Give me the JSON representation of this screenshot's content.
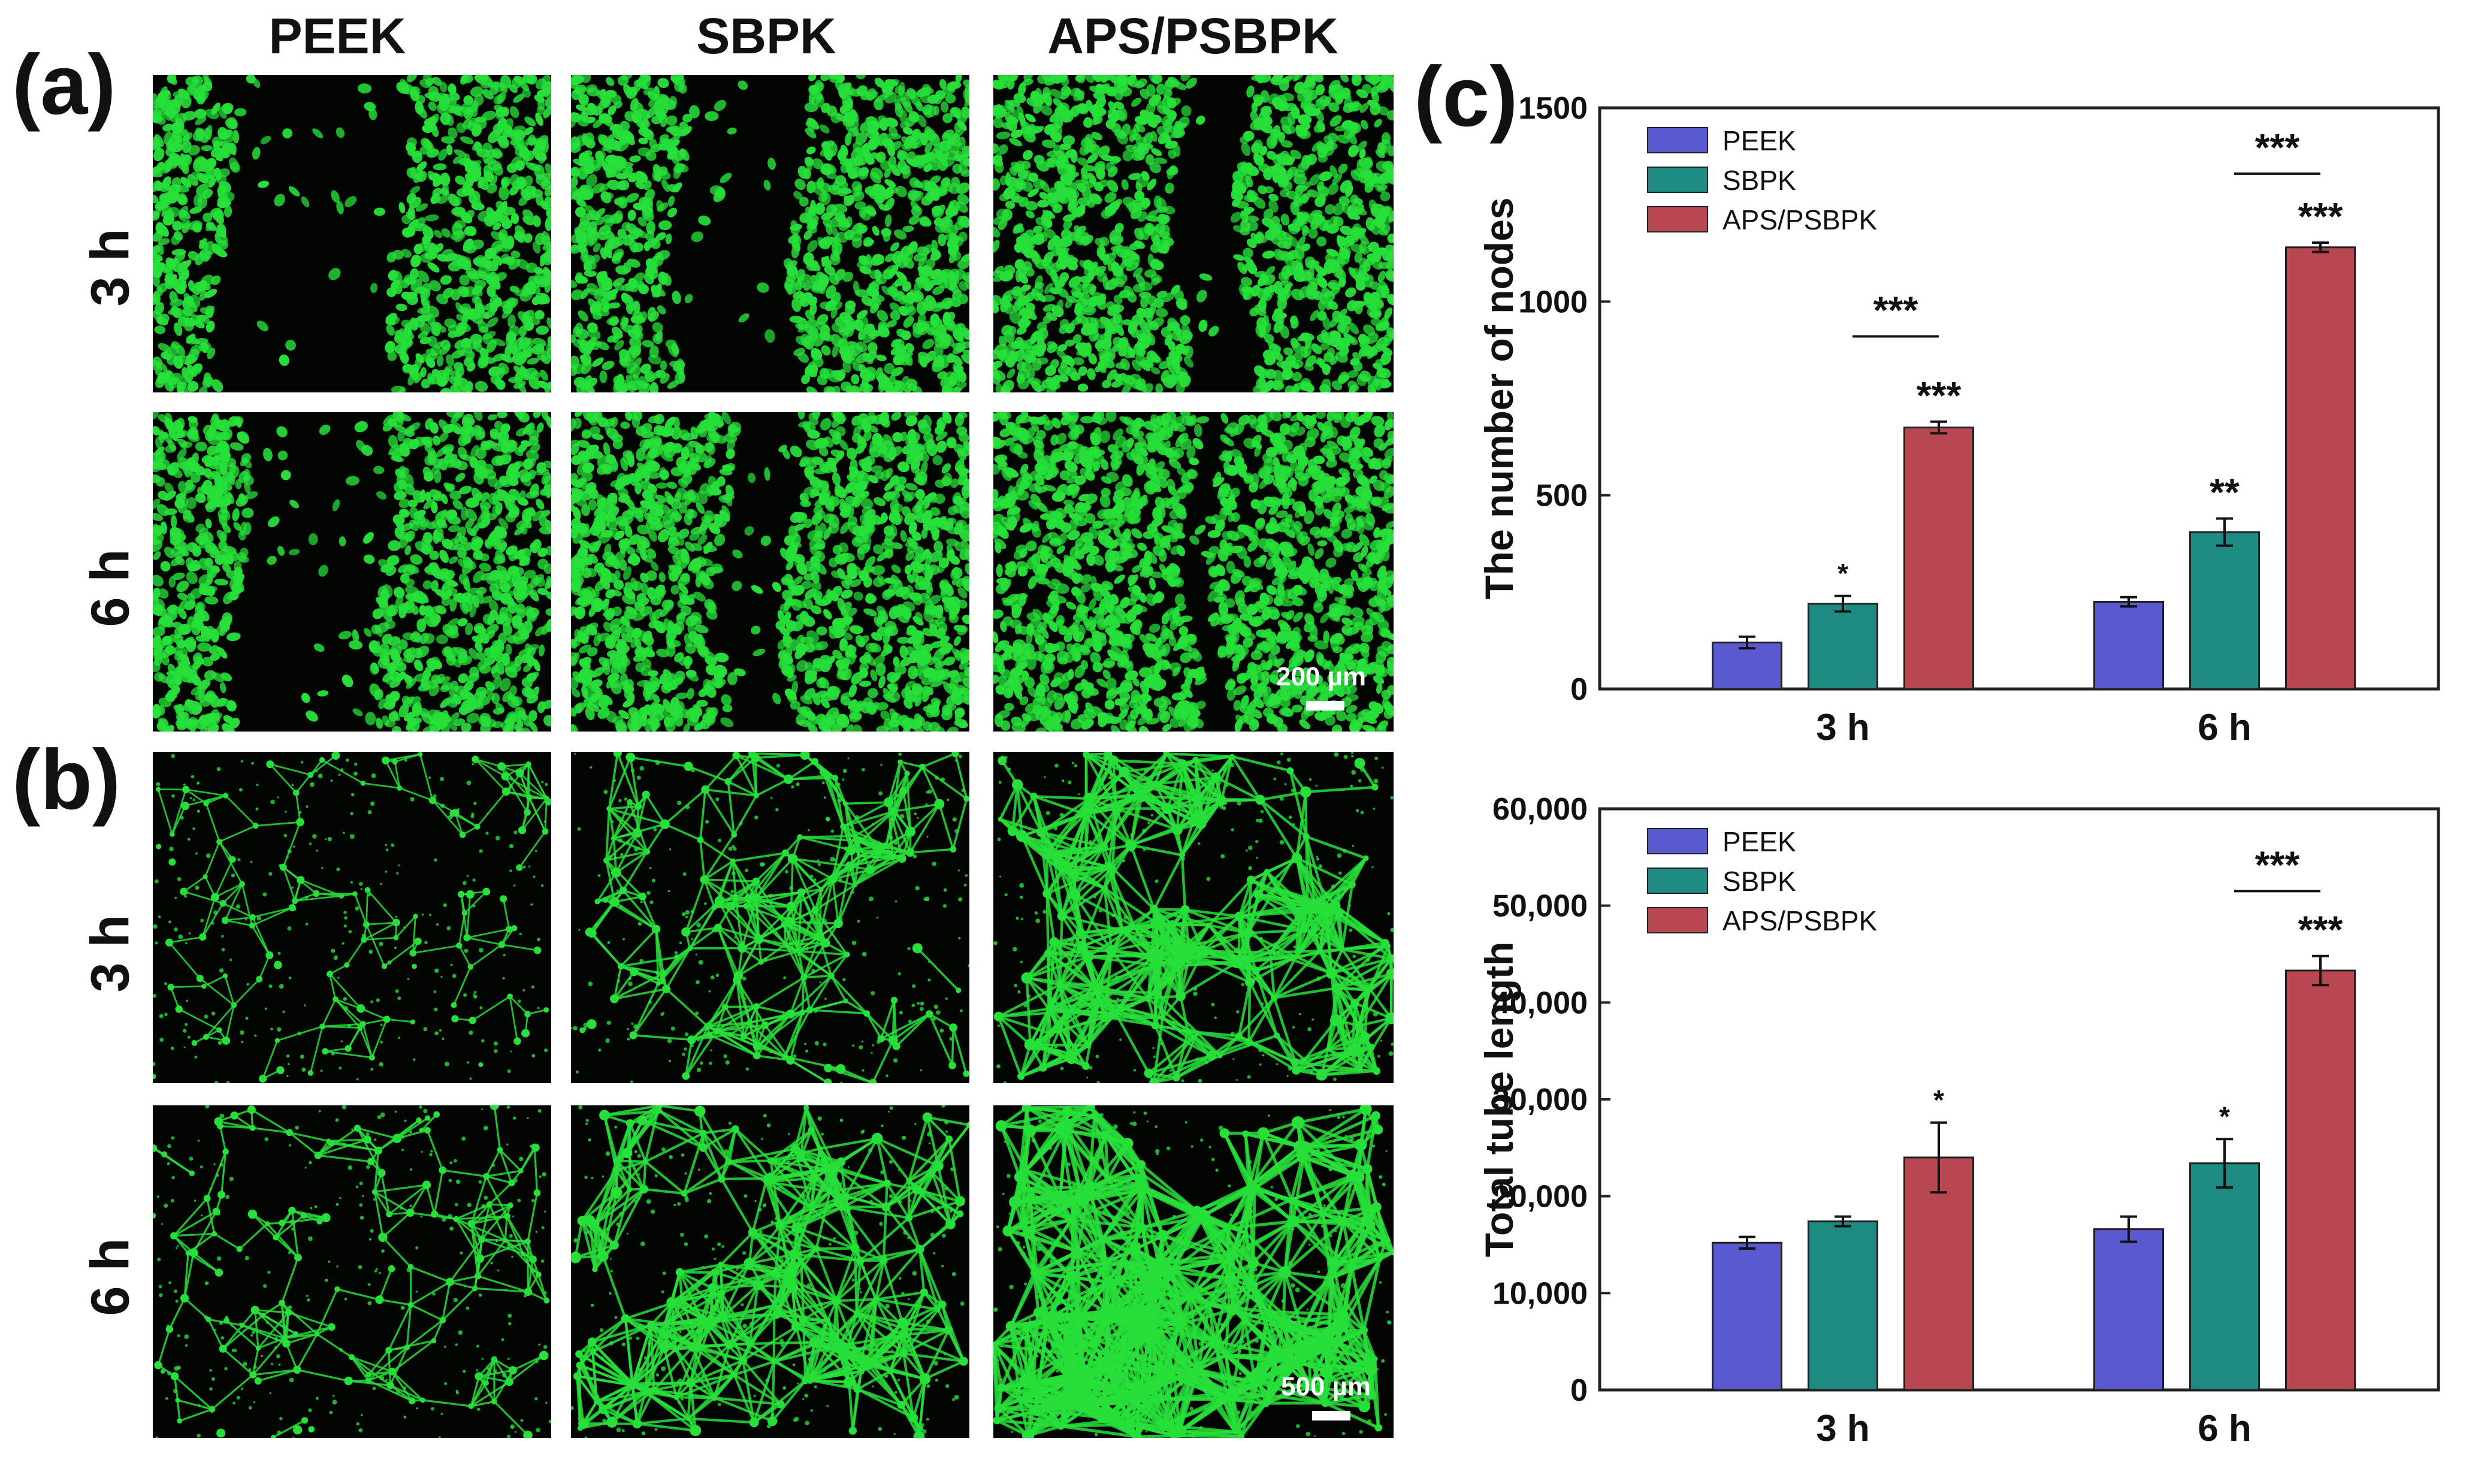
{
  "panels": {
    "a_label": "(a)",
    "b_label": "(b)",
    "c_label": "(c)"
  },
  "columns": [
    "PEEK",
    "SBPK",
    "APS/PSBPK"
  ],
  "rows": [
    "3 h",
    "6 h"
  ],
  "scalebars": {
    "a": "200 µm",
    "b": "500 µm"
  },
  "colors": {
    "PEEK": "#5b59cf",
    "SBPK": "#1f8a82",
    "APS/PSBPK": "#b84752",
    "fluorescence": "#27e03a"
  },
  "chart_data": [
    {
      "type": "bar",
      "categories": [
        "3 h",
        "6 h"
      ],
      "ylabel": "The number of nodes",
      "ylim": [
        0,
        1500
      ],
      "yticks": [
        "0",
        "500",
        "1000",
        "1500"
      ],
      "legend_position": "top-left",
      "series": [
        {
          "name": "PEEK",
          "values": [
            120,
            225
          ],
          "errors": [
            15,
            12
          ],
          "sig": [
            "",
            ""
          ]
        },
        {
          "name": "SBPK",
          "values": [
            220,
            405
          ],
          "errors": [
            20,
            35
          ],
          "sig": [
            "*",
            "**"
          ]
        },
        {
          "name": "APS/PSBPK",
          "values": [
            675,
            1140
          ],
          "errors": [
            15,
            12
          ],
          "sig": [
            "***",
            "***"
          ]
        }
      ],
      "brackets": [
        {
          "category": "3 h",
          "label": "***",
          "y": 910
        },
        {
          "category": "6 h",
          "label": "***",
          "y": 1330
        }
      ]
    },
    {
      "type": "bar",
      "categories": [
        "3 h",
        "6 h"
      ],
      "ylabel": "Total tube length",
      "ylim": [
        0,
        60000
      ],
      "yticks": [
        "0",
        "10,000",
        "20,000",
        "30,000",
        "40,000",
        "50,000",
        "60,000"
      ],
      "legend_position": "top-left",
      "series": [
        {
          "name": "PEEK",
          "values": [
            15200,
            16600
          ],
          "errors": [
            600,
            1300
          ],
          "sig": [
            "",
            ""
          ]
        },
        {
          "name": "SBPK",
          "values": [
            17400,
            23400
          ],
          "errors": [
            500,
            2500
          ],
          "sig": [
            "",
            "*"
          ]
        },
        {
          "name": "APS/PSBPK",
          "values": [
            24000,
            43300
          ],
          "errors": [
            3600,
            1500
          ],
          "sig": [
            "*",
            "***"
          ]
        }
      ],
      "brackets": [
        {
          "category": "6 h",
          "label": "***",
          "y": 51500
        }
      ]
    }
  ]
}
